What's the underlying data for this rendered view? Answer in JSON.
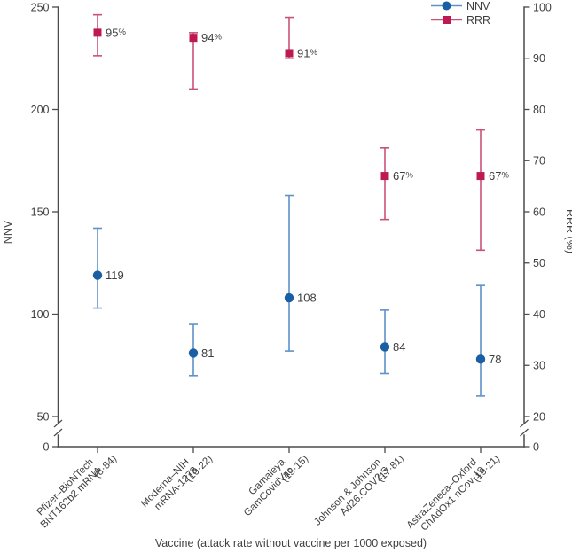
{
  "chart_data": {
    "type": "scatter",
    "title": "",
    "xlabel": "Vaccine (attack rate without vaccine per 1000 exposed)",
    "left_axis": {
      "label": "NNV",
      "ticks": [
        0,
        50,
        100,
        150,
        200,
        250
      ],
      "range": [
        50,
        250
      ],
      "axis_break_between": [
        0,
        50
      ]
    },
    "right_axis": {
      "label": "RRR (%)",
      "ticks": [
        0,
        20,
        30,
        40,
        50,
        60,
        70,
        80,
        90,
        100
      ],
      "range": [
        20,
        100
      ],
      "axis_break_between": [
        0,
        20
      ]
    },
    "categories": [
      {
        "maker": "Pfizer–BioNTech",
        "product": "BNT162b2 mRNA",
        "attack_rate": "(8·84)"
      },
      {
        "maker": "Moderna–NIH",
        "product": "mRNA-1273",
        "attack_rate": "(10·22)"
      },
      {
        "maker": "Gamaleya",
        "product": "GamCovidVac",
        "attack_rate": "(13·15)"
      },
      {
        "maker": "Johnson & Johnson",
        "product": "Ad26.COV2.S",
        "attack_rate": "(17·81)"
      },
      {
        "maker": "AstraZeneca–Oxford",
        "product": "ChAdOx1 nCov-19",
        "attack_rate": "(19·21)"
      }
    ],
    "series": [
      {
        "name": "NNV",
        "axis": "left",
        "marker": "circle",
        "marker_color": "#1a5ea3",
        "line_color": "#5e92c8",
        "points": [
          {
            "value": 119,
            "lo": 103,
            "hi": 142,
            "label": "119"
          },
          {
            "value": 81,
            "lo": 70,
            "hi": 95,
            "label": "81"
          },
          {
            "value": 108,
            "lo": 82,
            "hi": 158,
            "label": "108"
          },
          {
            "value": 84,
            "lo": 71,
            "hi": 102,
            "label": "84"
          },
          {
            "value": 78,
            "lo": 60,
            "hi": 114,
            "label": "78"
          }
        ]
      },
      {
        "name": "RRR",
        "axis": "right",
        "marker": "square",
        "marker_color": "#bd1a55",
        "line_color": "#c95277",
        "points": [
          {
            "value": 95,
            "lo": 90.5,
            "hi": 98.5,
            "label": "95%"
          },
          {
            "value": 94,
            "lo": 84,
            "hi": 95,
            "label": "94%"
          },
          {
            "value": 91,
            "lo": 90,
            "hi": 98,
            "label": "91%"
          },
          {
            "value": 67,
            "lo": 58.5,
            "hi": 72.5,
            "label": "67%"
          },
          {
            "value": 67,
            "lo": 52.5,
            "hi": 76,
            "label": "67%"
          }
        ]
      }
    ],
    "legend": [
      {
        "label": "NNV"
      },
      {
        "label": "RRR"
      }
    ],
    "colors": {
      "text": "#3f3f41",
      "axis": "#4c4c4e",
      "nnv_marker": "#1a5ea3",
      "nnv_errorbar": "#5e92c8",
      "rrr_marker": "#bd1a55",
      "rrr_errorbar": "#c95277"
    }
  }
}
